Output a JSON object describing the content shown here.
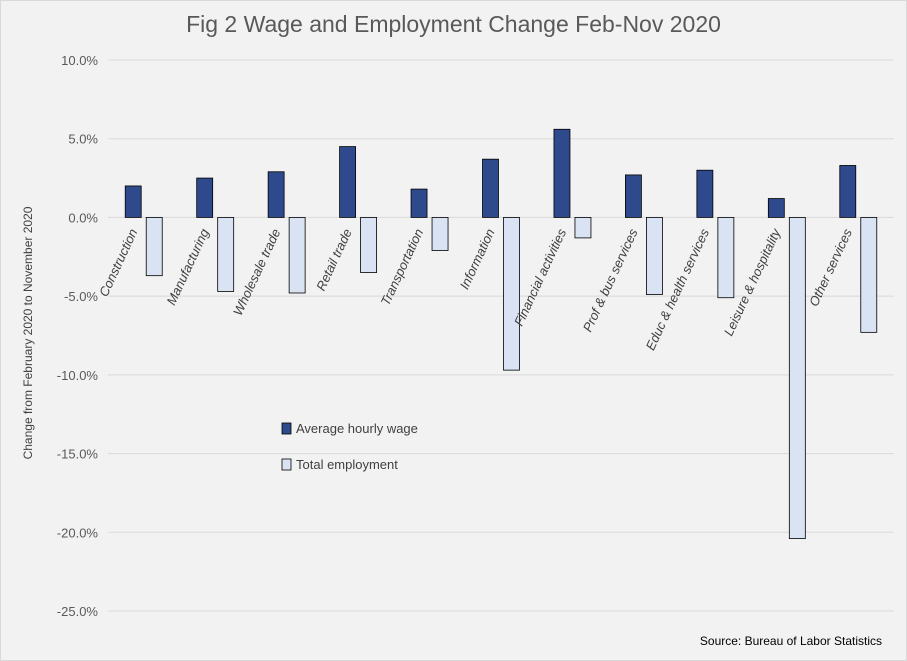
{
  "chart_data": {
    "type": "bar",
    "title": "Fig 2 Wage and Employment Change Feb-Nov 2020",
    "xlabel": "",
    "ylabel": "Change from February 2020 to November 2020",
    "ylim": [
      -25,
      10
    ],
    "yticks": [
      10,
      5,
      0,
      -5,
      -10,
      -15,
      -20,
      -25
    ],
    "ytick_labels": [
      "10.0%",
      "5.0%",
      "0.0%",
      "-5.0%",
      "-10.0%",
      "-15.0%",
      "-20.0%",
      "-25.0%"
    ],
    "grid": true,
    "legend_position": "center-left",
    "categories": [
      "Construction",
      "Manufacturing",
      "Wholesale trade",
      "Retail trade",
      "Transportation",
      "Information",
      "Financial activities",
      "Prof & bus services",
      "Educ & health services",
      "Leisure & hospitality",
      "Other services"
    ],
    "series": [
      {
        "name": "Average hourly wage",
        "color": "#2e4a8c",
        "values": [
          2.0,
          2.5,
          2.9,
          4.5,
          1.8,
          3.7,
          5.6,
          2.7,
          3.0,
          1.2,
          3.3
        ]
      },
      {
        "name": "Total employment",
        "color": "#dae3f3",
        "values": [
          -3.7,
          -4.7,
          -4.8,
          -3.5,
          -2.1,
          -9.7,
          -1.3,
          -4.9,
          -5.1,
          -20.4,
          -7.3
        ]
      }
    ],
    "source": "Source: Bureau of Labor Statistics"
  }
}
